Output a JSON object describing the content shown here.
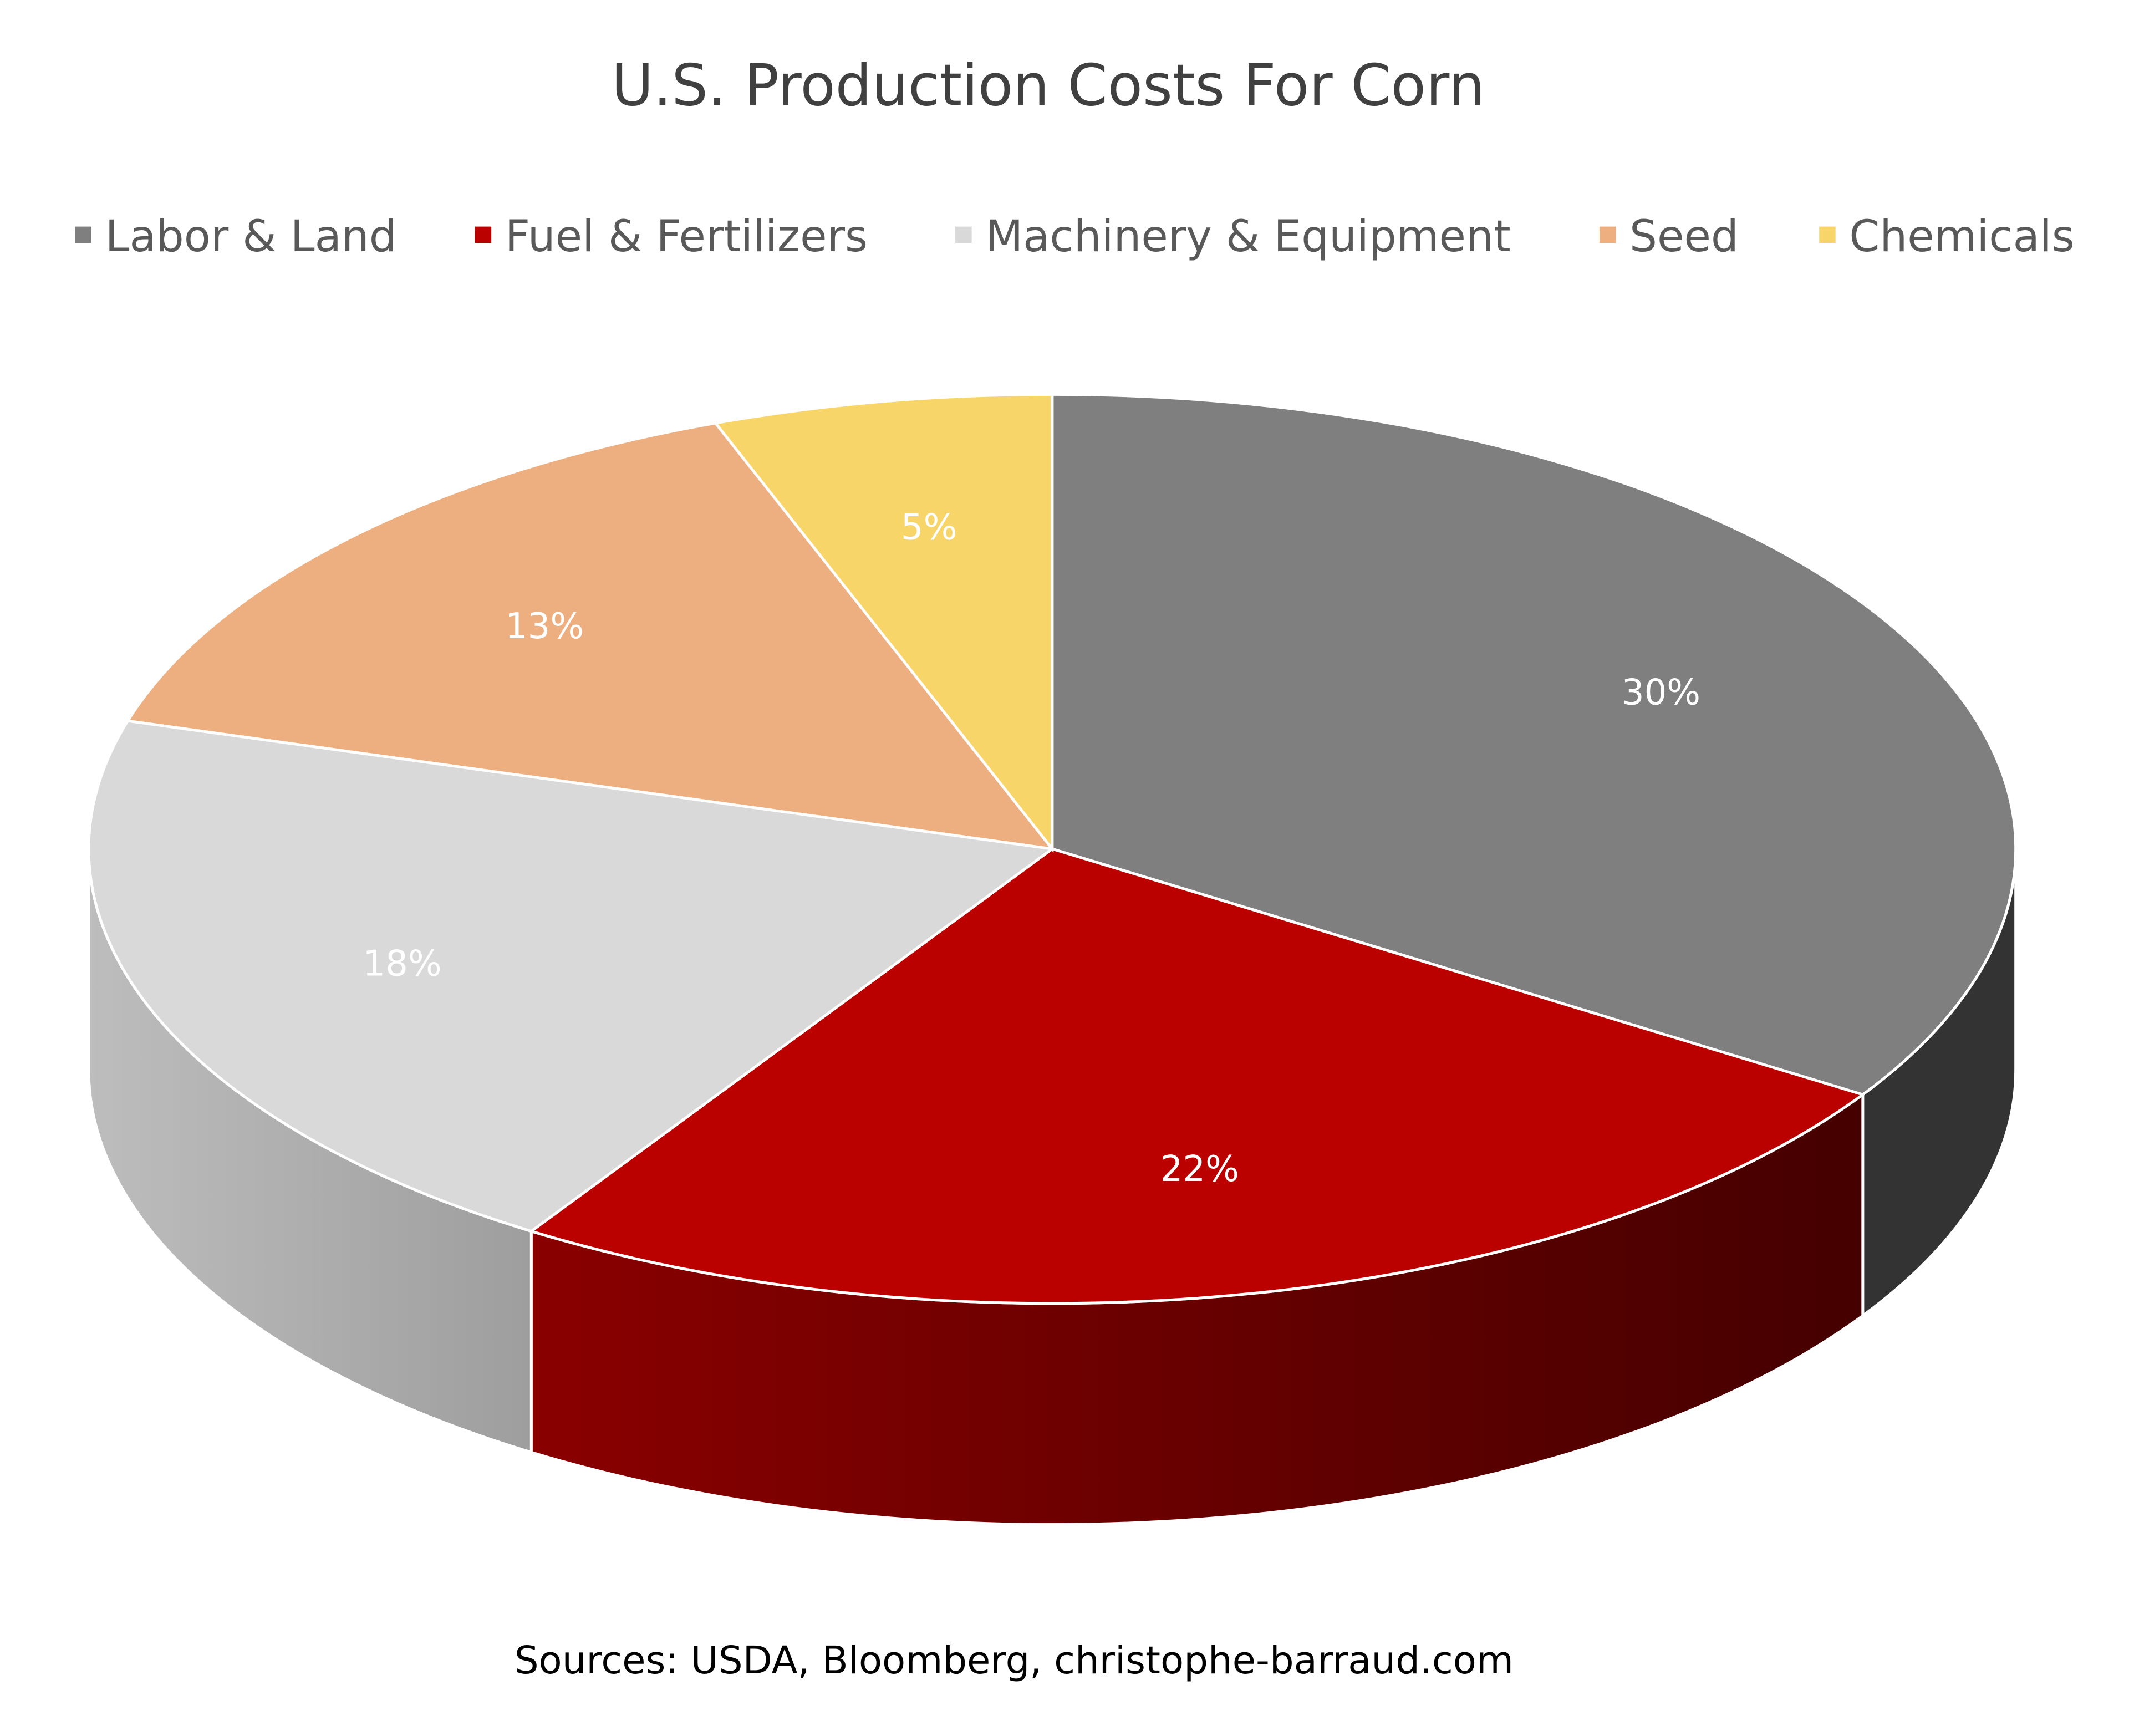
{
  "chart_data": {
    "type": "pie",
    "style": "3d",
    "title": "U.S. Production Costs For Corn",
    "legend_position": "top",
    "start_angle": "12 o'clock, clockwise",
    "slices": [
      {
        "label": "Labor & Land",
        "value": 30,
        "data_label": "30%",
        "color": "#7f7f7f",
        "side_color": "#333333"
      },
      {
        "label": "Fuel & Fertilizers",
        "value": 22,
        "data_label": "22%",
        "color": "#bb0000",
        "side_color": "#6a0000"
      },
      {
        "label": "Machinery & Equipment",
        "value": 18,
        "data_label": "18%",
        "color": "#d9d9d9",
        "side_color": "#b0b0b0"
      },
      {
        "label": "Seed",
        "value": 13,
        "data_label": "13%",
        "color": "#eeaf80",
        "side_color": "#c08a60"
      },
      {
        "label": "Chemicals",
        "value": 5,
        "data_label": "5%",
        "color": "#f8d568",
        "side_color": "#c9a840"
      }
    ],
    "source": "Sources: USDA, Bloomberg, christophe-barraud.com"
  }
}
